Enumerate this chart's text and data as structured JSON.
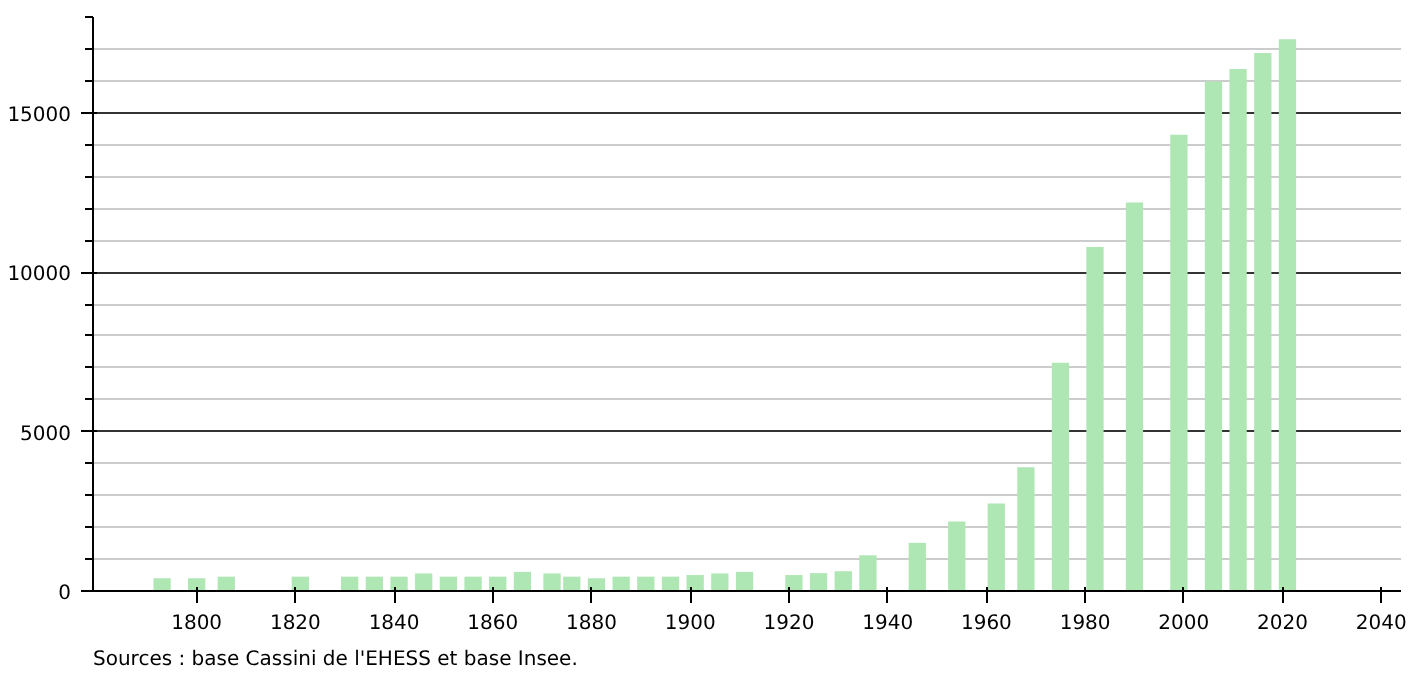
{
  "chart_data": {
    "type": "bar",
    "x": [
      1793,
      1800,
      1806,
      1821,
      1831,
      1836,
      1841,
      1846,
      1851,
      1856,
      1861,
      1866,
      1872,
      1876,
      1881,
      1886,
      1891,
      1896,
      1901,
      1906,
      1911,
      1921,
      1926,
      1931,
      1936,
      1946,
      1954,
      1962,
      1968,
      1975,
      1982,
      1990,
      1999,
      2006,
      2011,
      2016,
      2021
    ],
    "values": [
      400,
      400,
      450,
      450,
      450,
      450,
      450,
      550,
      450,
      450,
      450,
      600,
      550,
      450,
      400,
      450,
      450,
      450,
      500,
      550,
      600,
      500,
      560,
      620,
      1120,
      1510,
      2180,
      2740,
      3880,
      7160,
      10790,
      12180,
      14310,
      15980,
      16370,
      16870,
      17300
    ],
    "color": "#aee6b4",
    "xlim": [
      1779,
      2044
    ],
    "ylim": [
      0,
      18000
    ],
    "xticks": [
      1800,
      1820,
      1840,
      1860,
      1880,
      1900,
      1920,
      1940,
      1960,
      1980,
      2000,
      2020,
      2040
    ],
    "yticks": [
      0,
      5000,
      10000,
      15000
    ],
    "grid": "y",
    "annotations": [
      "Sources : base Cassini de l'EHESS et base Insee."
    ]
  }
}
